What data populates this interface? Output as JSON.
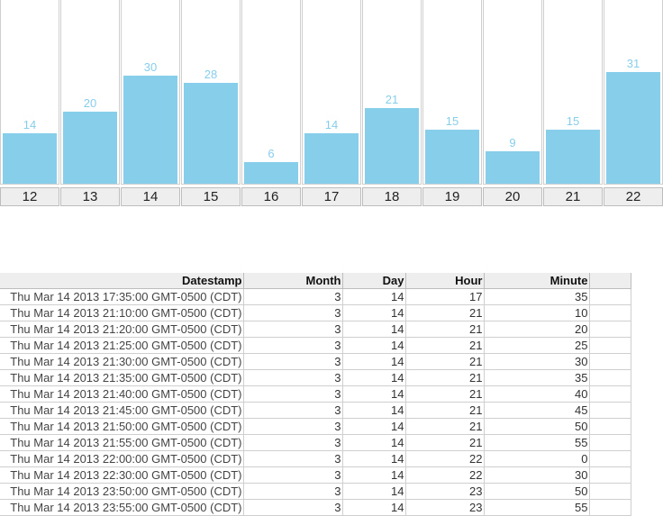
{
  "chart_data": {
    "type": "bar",
    "categories": [
      "12",
      "13",
      "14",
      "15",
      "16",
      "17",
      "18",
      "19",
      "20",
      "21",
      "22"
    ],
    "values": [
      14,
      20,
      30,
      28,
      6,
      14,
      21,
      15,
      9,
      15,
      31
    ],
    "ylim": [
      0,
      50
    ],
    "grid": false,
    "colors": {
      "bar": "#87ceeb",
      "label": "#87ceeb"
    }
  },
  "table": {
    "columns": [
      "Datestamp",
      "Month",
      "Day",
      "Hour",
      "Minute"
    ],
    "rows": [
      [
        "Thu Mar 14 2013 17:35:00 GMT-0500 (CDT)",
        "3",
        "14",
        "17",
        "35"
      ],
      [
        "Thu Mar 14 2013 21:10:00 GMT-0500 (CDT)",
        "3",
        "14",
        "21",
        "10"
      ],
      [
        "Thu Mar 14 2013 21:20:00 GMT-0500 (CDT)",
        "3",
        "14",
        "21",
        "20"
      ],
      [
        "Thu Mar 14 2013 21:25:00 GMT-0500 (CDT)",
        "3",
        "14",
        "21",
        "25"
      ],
      [
        "Thu Mar 14 2013 21:30:00 GMT-0500 (CDT)",
        "3",
        "14",
        "21",
        "30"
      ],
      [
        "Thu Mar 14 2013 21:35:00 GMT-0500 (CDT)",
        "3",
        "14",
        "21",
        "35"
      ],
      [
        "Thu Mar 14 2013 21:40:00 GMT-0500 (CDT)",
        "3",
        "14",
        "21",
        "40"
      ],
      [
        "Thu Mar 14 2013 21:45:00 GMT-0500 (CDT)",
        "3",
        "14",
        "21",
        "45"
      ],
      [
        "Thu Mar 14 2013 21:50:00 GMT-0500 (CDT)",
        "3",
        "14",
        "21",
        "50"
      ],
      [
        "Thu Mar 14 2013 21:55:00 GMT-0500 (CDT)",
        "3",
        "14",
        "21",
        "55"
      ],
      [
        "Thu Mar 14 2013 22:00:00 GMT-0500 (CDT)",
        "3",
        "14",
        "22",
        "0"
      ],
      [
        "Thu Mar 14 2013 22:30:00 GMT-0500 (CDT)",
        "3",
        "14",
        "22",
        "30"
      ],
      [
        "Thu Mar 14 2013 23:50:00 GMT-0500 (CDT)",
        "3",
        "14",
        "23",
        "50"
      ],
      [
        "Thu Mar 14 2013 23:55:00 GMT-0500 (CDT)",
        "3",
        "14",
        "23",
        "55"
      ]
    ]
  }
}
